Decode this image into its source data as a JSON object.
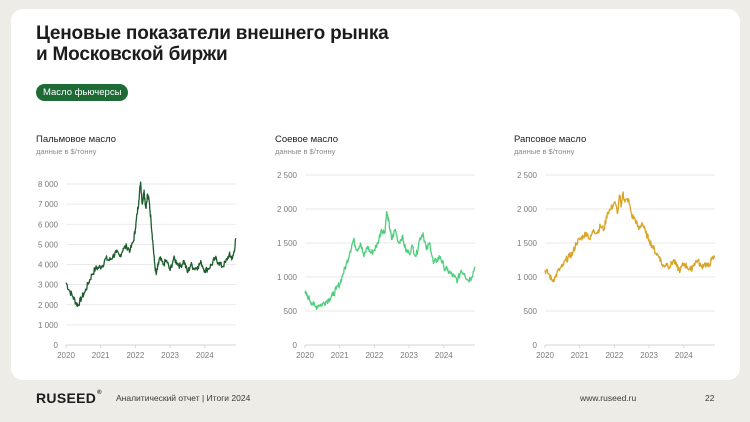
{
  "slide": {
    "title": "Ценовые показатели внешнего рынка\nи Московской биржи",
    "tag": "Масло фьючерсы"
  },
  "footer": {
    "logo": "RUSEED",
    "logo_mark": "®",
    "report": "Аналитический отчет  |  Итоги 2024",
    "url": "www.ruseed.ru",
    "page": "22"
  },
  "chart_data": [
    {
      "type": "line",
      "title": "Пальмовое масло",
      "subtitle": "данные в $/тонну",
      "color": "#1e5c2e",
      "ylim": [
        0,
        8000
      ],
      "yticks": [
        0,
        1000,
        2000,
        3000,
        4000,
        5000,
        6000,
        7000,
        8000
      ],
      "ytick_labels": [
        "0",
        "1 000",
        "2 000",
        "3 000",
        "4 000",
        "5 000",
        "6 000",
        "7 000",
        "8 000"
      ],
      "xlim": [
        2020,
        2024.9
      ],
      "xticks": [
        2020,
        2021,
        2022,
        2023,
        2024
      ],
      "xtick_labels": [
        "2020",
        "2021",
        "2022",
        "2023",
        "2024"
      ],
      "grid": true,
      "x": [
        2020.0,
        2020.1,
        2020.2,
        2020.3,
        2020.35,
        2020.45,
        2020.55,
        2020.65,
        2020.75,
        2020.85,
        2020.95,
        2021.05,
        2021.15,
        2021.25,
        2021.35,
        2021.45,
        2021.55,
        2021.65,
        2021.75,
        2021.85,
        2021.95,
        2022.0,
        2022.05,
        2022.1,
        2022.15,
        2022.2,
        2022.25,
        2022.3,
        2022.35,
        2022.4,
        2022.45,
        2022.5,
        2022.55,
        2022.6,
        2022.65,
        2022.7,
        2022.8,
        2022.9,
        2023.0,
        2023.1,
        2023.2,
        2023.3,
        2023.4,
        2023.5,
        2023.6,
        2023.7,
        2023.8,
        2023.9,
        2024.0,
        2024.1,
        2024.2,
        2024.3,
        2024.4,
        2024.5,
        2024.6,
        2024.7,
        2024.75,
        2024.8,
        2024.85,
        2024.9
      ],
      "y": [
        3100,
        2700,
        2400,
        2050,
        2000,
        2350,
        2650,
        3100,
        3500,
        3800,
        3850,
        3950,
        4300,
        4200,
        4400,
        4600,
        4400,
        4800,
        4900,
        4700,
        5200,
        5800,
        6500,
        7200,
        8100,
        7000,
        7700,
        6800,
        7500,
        7100,
        6200,
        5200,
        4100,
        3500,
        3900,
        4300,
        4000,
        4200,
        3700,
        4300,
        4100,
        3900,
        4200,
        3600,
        4000,
        3800,
        3900,
        4100,
        3700,
        3800,
        4000,
        4300,
        4100,
        3900,
        4100,
        4500,
        4400,
        4300,
        4700,
        5300
      ]
    },
    {
      "type": "line",
      "title": "Соевое масло",
      "subtitle": "данные в $/тонну",
      "color": "#4fce7d",
      "ylim": [
        0,
        2500
      ],
      "yticks": [
        0,
        500,
        1000,
        1500,
        2000,
        2500
      ],
      "ytick_labels": [
        "0",
        "500",
        "1 000",
        "1 500",
        "2 000",
        "2 500"
      ],
      "xlim": [
        2020,
        2024.9
      ],
      "xticks": [
        2020,
        2021,
        2022,
        2023,
        2024
      ],
      "xtick_labels": [
        "2020",
        "2021",
        "2022",
        "2023",
        "2024"
      ],
      "grid": true,
      "x": [
        2020.0,
        2020.1,
        2020.2,
        2020.3,
        2020.4,
        2020.5,
        2020.6,
        2020.7,
        2020.8,
        2020.9,
        2021.0,
        2021.1,
        2021.2,
        2021.3,
        2021.4,
        2021.5,
        2021.6,
        2021.7,
        2021.8,
        2021.9,
        2022.0,
        2022.1,
        2022.2,
        2022.3,
        2022.35,
        2022.4,
        2022.45,
        2022.5,
        2022.6,
        2022.7,
        2022.8,
        2022.9,
        2023.0,
        2023.1,
        2023.2,
        2023.3,
        2023.4,
        2023.5,
        2023.6,
        2023.7,
        2023.8,
        2023.9,
        2024.0,
        2024.1,
        2024.2,
        2024.3,
        2024.4,
        2024.5,
        2024.6,
        2024.7,
        2024.8,
        2024.9
      ],
      "y": [
        760,
        700,
        620,
        560,
        590,
        600,
        640,
        680,
        730,
        820,
        900,
        1050,
        1200,
        1380,
        1550,
        1400,
        1500,
        1300,
        1450,
        1350,
        1400,
        1500,
        1700,
        1650,
        1950,
        1850,
        1700,
        1550,
        1700,
        1500,
        1600,
        1400,
        1350,
        1450,
        1300,
        1550,
        1650,
        1400,
        1500,
        1200,
        1250,
        1300,
        1150,
        1100,
        1050,
        1000,
        950,
        1100,
        1050,
        950,
        1000,
        1150
      ]
    },
    {
      "type": "line",
      "title": "Рапсовое масло",
      "subtitle": "данные в $/тонну",
      "color": "#d9a42a",
      "ylim": [
        0,
        2500
      ],
      "yticks": [
        0,
        500,
        1000,
        1500,
        2000,
        2500
      ],
      "ytick_labels": [
        "0",
        "500",
        "1 000",
        "1 500",
        "2 000",
        "2 500"
      ],
      "xlim": [
        2020,
        2024.9
      ],
      "xticks": [
        2020,
        2021,
        2022,
        2023,
        2024
      ],
      "xtick_labels": [
        "2020",
        "2021",
        "2022",
        "2023",
        "2024"
      ],
      "grid": true,
      "x": [
        2020.0,
        2020.1,
        2020.2,
        2020.3,
        2020.4,
        2020.5,
        2020.6,
        2020.7,
        2020.8,
        2020.9,
        2021.0,
        2021.1,
        2021.2,
        2021.3,
        2021.4,
        2021.5,
        2021.6,
        2021.7,
        2021.8,
        2021.9,
        2022.0,
        2022.1,
        2022.15,
        2022.2,
        2022.25,
        2022.3,
        2022.4,
        2022.5,
        2022.6,
        2022.7,
        2022.8,
        2022.9,
        2023.0,
        2023.1,
        2023.2,
        2023.3,
        2023.4,
        2023.5,
        2023.6,
        2023.7,
        2023.8,
        2023.9,
        2024.0,
        2024.1,
        2024.2,
        2024.3,
        2024.4,
        2024.5,
        2024.6,
        2024.7,
        2024.8,
        2024.9
      ],
      "y": [
        1100,
        1050,
        950,
        1000,
        1100,
        1150,
        1250,
        1300,
        1350,
        1500,
        1550,
        1600,
        1650,
        1550,
        1700,
        1650,
        1750,
        1700,
        1950,
        2000,
        2100,
        1950,
        2200,
        2050,
        2250,
        2100,
        2150,
        1900,
        1850,
        1700,
        1800,
        1650,
        1550,
        1450,
        1350,
        1300,
        1150,
        1200,
        1150,
        1250,
        1150,
        1100,
        1200,
        1150,
        1100,
        1200,
        1250,
        1150,
        1200,
        1150,
        1250,
        1300
      ]
    }
  ]
}
